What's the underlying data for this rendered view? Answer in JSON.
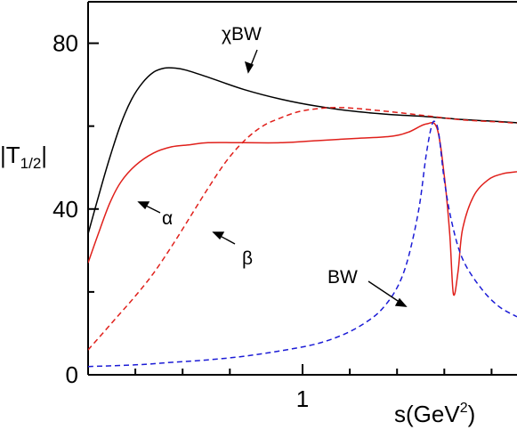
{
  "chart_data": {
    "type": "line",
    "title": "",
    "xlabel": "s(GeV",
    "xlabel_sup": "2",
    "xlabel_close": ")",
    "ylabel": "|T",
    "ylabel_sub": "1/2",
    "ylabel_close": "|",
    "xlim": [
      0.07,
      1.25
    ],
    "ylim": [
      0,
      90
    ],
    "x_tick_labels": [
      {
        "x": 0.66,
        "label": "1"
      }
    ],
    "x_minor_ticks": [
      0.2,
      0.33,
      0.46,
      0.79,
      0.92,
      1.05,
      1.18
    ],
    "y_tick_labels": [
      {
        "y": 0,
        "label": "0"
      },
      {
        "y": 40,
        "label": "40"
      },
      {
        "y": 80,
        "label": "80"
      }
    ],
    "y_minor_ticks": [
      20,
      60
    ],
    "grid": false,
    "series": [
      {
        "name": "χBW",
        "color": "#000000",
        "dash": "solid",
        "points": [
          [
            0.07,
            34
          ],
          [
            0.1,
            43.5
          ],
          [
            0.13,
            52.5
          ],
          [
            0.16,
            60.5
          ],
          [
            0.19,
            66.5
          ],
          [
            0.22,
            70.5
          ],
          [
            0.25,
            73
          ],
          [
            0.28,
            74
          ],
          [
            0.31,
            74
          ],
          [
            0.34,
            73.5
          ],
          [
            0.4,
            71.8
          ],
          [
            0.5,
            68.8
          ],
          [
            0.6,
            66.5
          ],
          [
            0.7,
            64.8
          ],
          [
            0.8,
            63.6
          ],
          [
            0.9,
            62.8
          ],
          [
            1.0,
            62.3
          ],
          [
            1.1,
            61.6
          ],
          [
            1.2,
            61.1
          ],
          [
            1.25,
            60.8
          ]
        ]
      },
      {
        "name": "α",
        "color": "#e0201b",
        "dash": "solid",
        "points": [
          [
            0.07,
            27
          ],
          [
            0.1,
            34.5
          ],
          [
            0.13,
            41.5
          ],
          [
            0.16,
            46.5
          ],
          [
            0.2,
            50.5
          ],
          [
            0.25,
            53.5
          ],
          [
            0.3,
            55
          ],
          [
            0.35,
            55.5
          ],
          [
            0.4,
            56
          ],
          [
            0.5,
            56
          ],
          [
            0.6,
            56
          ],
          [
            0.7,
            56.5
          ],
          [
            0.8,
            57
          ],
          [
            0.9,
            57.5
          ],
          [
            0.95,
            58.5
          ],
          [
            1.0,
            60.5
          ],
          [
            1.03,
            59.5
          ],
          [
            1.05,
            48
          ],
          [
            1.065,
            34
          ],
          [
            1.075,
            19.5
          ],
          [
            1.088,
            25
          ],
          [
            1.1,
            35
          ],
          [
            1.13,
            43
          ],
          [
            1.17,
            47
          ],
          [
            1.21,
            48.5
          ],
          [
            1.25,
            49
          ]
        ]
      },
      {
        "name": "β",
        "color": "#e0201b",
        "dash": "dashed",
        "points": [
          [
            0.07,
            6
          ],
          [
            0.1,
            9
          ],
          [
            0.15,
            14
          ],
          [
            0.2,
            19
          ],
          [
            0.25,
            24.5
          ],
          [
            0.3,
            31
          ],
          [
            0.35,
            38
          ],
          [
            0.4,
            45
          ],
          [
            0.45,
            51.5
          ],
          [
            0.5,
            56.5
          ],
          [
            0.55,
            60
          ],
          [
            0.6,
            62
          ],
          [
            0.65,
            63.5
          ],
          [
            0.7,
            64.2
          ],
          [
            0.75,
            64.5
          ],
          [
            0.8,
            64.3
          ],
          [
            0.9,
            63.5
          ],
          [
            1.0,
            62.5
          ],
          [
            1.1,
            61.5
          ],
          [
            1.2,
            61
          ],
          [
            1.25,
            60.7
          ]
        ]
      },
      {
        "name": "BW",
        "color": "#1c1cd6",
        "dash": "dashed",
        "points": [
          [
            0.07,
            2
          ],
          [
            0.2,
            2.4
          ],
          [
            0.3,
            3
          ],
          [
            0.4,
            3.6
          ],
          [
            0.5,
            4.5
          ],
          [
            0.6,
            5.8
          ],
          [
            0.7,
            7.5
          ],
          [
            0.78,
            10
          ],
          [
            0.84,
            13
          ],
          [
            0.88,
            16
          ],
          [
            0.92,
            21
          ],
          [
            0.95,
            28
          ],
          [
            0.98,
            40
          ],
          [
            1.0,
            53
          ],
          [
            1.015,
            60
          ],
          [
            1.025,
            61
          ],
          [
            1.035,
            58
          ],
          [
            1.05,
            47
          ],
          [
            1.07,
            37
          ],
          [
            1.1,
            28
          ],
          [
            1.15,
            21
          ],
          [
            1.2,
            16.5
          ],
          [
            1.25,
            14
          ]
        ]
      }
    ],
    "annotations": [
      {
        "text": "χBW",
        "series": "χBW"
      },
      {
        "text": "α",
        "series": "α"
      },
      {
        "text": "β",
        "series": "β"
      },
      {
        "text": "BW",
        "series": "BW"
      }
    ]
  }
}
